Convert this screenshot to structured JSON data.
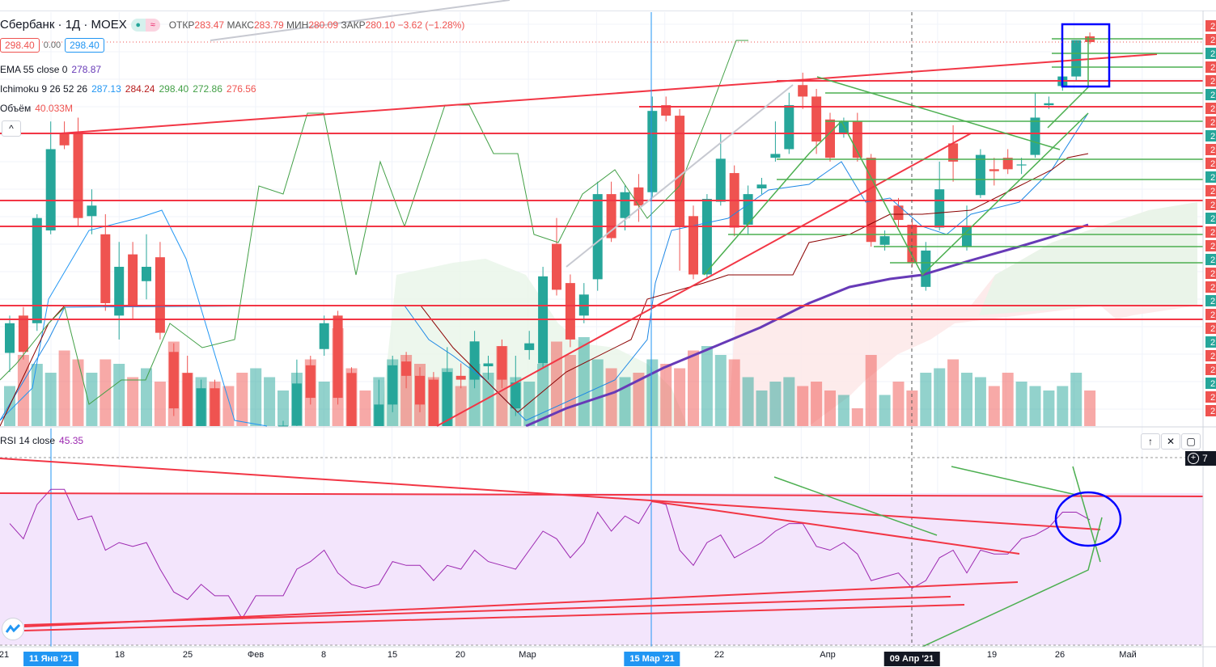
{
  "header": {
    "symbol": "Сбербанк · 1Д · MOEX",
    "open_label": "ОТКР",
    "open": "283.47",
    "high_label": "МАКС",
    "high": "283.79",
    "low_label": "МИН",
    "low": "280.09",
    "close_label": "ЗАКР",
    "close": "280.10",
    "change": "−3.62 (−1.28%)",
    "sell_price": "298.40",
    "spread": "0.00",
    "buy_price": "298.40"
  },
  "indicators": {
    "ema_label": "EMA 55 close 0",
    "ema_value": "278.87",
    "ichimoku_label": "Ichimoku 9 26 52 26",
    "ichimoku_values": [
      "287.13",
      "284.24",
      "298.40",
      "272.86",
      "276.56"
    ],
    "volume_label": "Объём",
    "volume_value": "40.033M",
    "rsi_label": "RSI 14 close",
    "rsi_value": "45.35"
  },
  "colors": {
    "up": "#26a69a",
    "down": "#ef5350",
    "ema": "#673ab7",
    "rsi": "#9c27b0",
    "accent": "#2196f3"
  },
  "chart_data": {
    "type": "candlestick",
    "ohlc": [
      [
        265.9,
        269.8,
        263.9,
        269.0
      ],
      [
        269.8,
        270.7,
        265.2,
        266.0
      ],
      [
        269.0,
        280.4,
        268.2,
        280.0
      ],
      [
        278.7,
        290.1,
        278.3,
        287.2
      ],
      [
        288.9,
        290.1,
        287.2,
        287.6
      ],
      [
        288.9,
        290.5,
        279.1,
        280.0
      ],
      [
        280.2,
        283.0,
        278.3,
        281.3
      ],
      [
        278.3,
        280.4,
        270.3,
        271.1
      ],
      [
        269.8,
        277.5,
        267.3,
        274.9
      ],
      [
        276.2,
        277.5,
        269.4,
        270.7
      ],
      [
        273.4,
        278.3,
        271.5,
        274.9
      ],
      [
        275.9,
        277.5,
        267.3,
        268.0
      ],
      [
        266.0,
        266.9,
        259.3,
        260.1
      ],
      [
        263.8,
        265.6,
        256.3,
        257.2
      ],
      [
        257.2,
        263.1,
        256.3,
        262.2
      ],
      [
        262.2,
        263.1,
        255.9,
        257.2
      ],
      [
        256.7,
        257.2,
        253.9,
        254.6
      ],
      [
        254.6,
        255.0,
        251.2,
        252.1
      ],
      [
        252.1,
        255.4,
        251.2,
        254.6
      ],
      [
        254.6,
        258.0,
        253.8,
        257.2
      ],
      [
        256.7,
        258.8,
        255.9,
        258.3
      ],
      [
        258.3,
        265.2,
        258.0,
        262.7
      ],
      [
        264.6,
        265.6,
        260.5,
        261.2
      ],
      [
        266.3,
        269.8,
        265.6,
        269.0
      ],
      [
        269.8,
        270.3,
        260.5,
        261.2
      ],
      [
        263.8,
        264.4,
        256.7,
        257.2
      ],
      [
        257.2,
        257.8,
        254.6,
        255.5
      ],
      [
        255.5,
        263.1,
        254.6,
        260.5
      ],
      [
        260.5,
        265.6,
        259.7,
        264.6
      ],
      [
        265.0,
        266.0,
        262.2,
        263.5
      ],
      [
        263.5,
        264.4,
        259.7,
        260.5
      ],
      [
        263.1,
        263.9,
        256.3,
        257.2
      ],
      [
        257.2,
        266.5,
        256.7,
        263.9
      ],
      [
        263.5,
        264.8,
        262.2,
        263.1
      ],
      [
        263.1,
        268.2,
        262.2,
        267.1
      ],
      [
        264.5,
        265.6,
        263.1,
        264.8
      ],
      [
        266.6,
        267.3,
        262.2,
        263.1
      ],
      [
        260.1,
        265.6,
        259.3,
        262.8
      ],
      [
        266.2,
        268.2,
        265.2,
        266.9
      ],
      [
        264.8,
        274.9,
        264.4,
        273.9
      ],
      [
        277.3,
        280.0,
        271.9,
        272.5
      ],
      [
        273.2,
        274.1,
        266.5,
        267.3
      ],
      [
        269.8,
        273.2,
        269.0,
        272.0
      ],
      [
        273.6,
        283.8,
        272.4,
        282.5
      ],
      [
        282.5,
        283.8,
        277.5,
        277.9
      ],
      [
        280.0,
        283.4,
        278.7,
        282.7
      ],
      [
        283.2,
        284.6,
        279.6,
        281.3
      ],
      [
        282.7,
        292.7,
        282.1,
        291.2
      ],
      [
        291.8,
        292.7,
        290.1,
        290.7
      ],
      [
        290.7,
        291.4,
        274.5,
        279.1
      ],
      [
        280.2,
        281.3,
        273.6,
        274.1
      ],
      [
        274.1,
        282.5,
        273.6,
        282.0
      ],
      [
        281.7,
        288.9,
        281.3,
        286.2
      ],
      [
        284.7,
        285.5,
        278.1,
        279.0
      ],
      [
        279.3,
        283.4,
        278.3,
        282.5
      ],
      [
        283.1,
        284.2,
        282.5,
        283.5
      ],
      [
        286.3,
        290.1,
        285.9,
        286.7
      ],
      [
        287.2,
        293.1,
        286.7,
        291.8
      ],
      [
        293.9,
        295.2,
        291.4,
        292.7
      ],
      [
        292.7,
        293.5,
        286.7,
        288.0
      ],
      [
        290.3,
        291.0,
        285.9,
        286.3
      ],
      [
        288.9,
        290.5,
        288.4,
        290.1
      ],
      [
        290.1,
        291.0,
        285.9,
        286.3
      ],
      [
        286.3,
        286.7,
        277.0,
        277.5
      ],
      [
        277.2,
        278.7,
        276.6,
        278.1
      ],
      [
        281.3,
        282.1,
        279.1,
        279.8
      ],
      [
        279.3,
        280.0,
        274.9,
        275.3
      ],
      [
        272.8,
        277.5,
        272.4,
        276.6
      ],
      [
        279.0,
        285.9,
        278.7,
        283.0
      ],
      [
        287.8,
        289.7,
        283.8,
        285.9
      ],
      [
        277.0,
        281.3,
        276.6,
        279.1
      ],
      [
        282.4,
        287.2,
        282.1,
        286.6
      ],
      [
        285.1,
        286.3,
        283.4,
        284.9
      ],
      [
        286.3,
        287.2,
        284.6,
        285.1
      ],
      [
        285.5,
        286.3,
        284.6,
        285.6
      ],
      [
        286.6,
        293.1,
        286.3,
        290.5
      ],
      [
        291.8,
        292.7,
        291.4,
        292.0
      ],
      [
        293.8,
        295.6,
        293.3,
        294.8
      ],
      [
        294.8,
        298.6,
        294.4,
        298.6
      ],
      [
        299.0,
        299.4,
        298.2,
        298.4
      ]
    ],
    "volume_m": [
      45,
      80,
      70,
      60,
      85,
      75,
      60,
      75,
      70,
      55,
      65,
      50,
      95,
      60,
      55,
      50,
      45,
      60,
      65,
      55,
      40,
      60,
      75,
      50,
      110,
      65,
      40,
      55,
      75,
      80,
      70,
      55,
      65,
      45,
      70,
      60,
      90,
      55,
      50,
      70,
      95,
      80,
      100,
      75,
      65,
      55,
      60,
      75,
      70,
      65,
      85,
      90,
      80,
      75,
      55,
      40,
      50,
      55,
      45,
      50,
      40,
      35,
      20,
      80,
      35,
      50,
      40,
      60,
      65,
      75,
      60,
      55,
      45,
      60,
      50,
      45,
      40,
      45,
      60,
      40
    ],
    "rsi": [
      62,
      58,
      67,
      71,
      71,
      63,
      64,
      55,
      57,
      56,
      57,
      50,
      44,
      42,
      46,
      43,
      43,
      37,
      43,
      43,
      43,
      50,
      52,
      55,
      49,
      46,
      45,
      46,
      52,
      51,
      51,
      47,
      51,
      50,
      55,
      52,
      51,
      50,
      55,
      60,
      58,
      53,
      57,
      65,
      60,
      64,
      62,
      68,
      67,
      55,
      51,
      57,
      59,
      53,
      55,
      57,
      60,
      62,
      62,
      56,
      55,
      57,
      54,
      47,
      48,
      49,
      45,
      47,
      53,
      55,
      49,
      55,
      54,
      54,
      58,
      59,
      61,
      65,
      65,
      63
    ],
    "price_range": [
      258.3,
      301.5
    ],
    "rsi_range": [
      30,
      70
    ],
    "x_labels": [
      {
        "text": "21",
        "type": "normal"
      },
      {
        "text": "11 Янв '21",
        "type": "highlight"
      },
      {
        "text": "18",
        "type": "normal"
      },
      {
        "text": "25",
        "type": "normal"
      },
      {
        "text": "Фев",
        "type": "normal"
      },
      {
        "text": "8",
        "type": "normal"
      },
      {
        "text": "15",
        "type": "normal"
      },
      {
        "text": "20",
        "type": "normal"
      },
      {
        "text": "Мар",
        "type": "normal"
      },
      {
        "text": "15 Мар '21",
        "type": "highlight"
      },
      {
        "text": "22",
        "type": "normal"
      },
      {
        "text": "Апр",
        "type": "normal"
      },
      {
        "text": "09 Апр '21",
        "type": "crosshair"
      },
      {
        "text": "19",
        "type": "normal"
      },
      {
        "text": "26",
        "type": "normal"
      },
      {
        "text": "Май",
        "type": "normal"
      }
    ]
  },
  "price_axis": {
    "tick": "2",
    "rsi_tick": "7"
  },
  "buttons": {
    "collapse": "^",
    "up": "↑",
    "close": "✕",
    "maximize": "▢",
    "add": "+"
  }
}
